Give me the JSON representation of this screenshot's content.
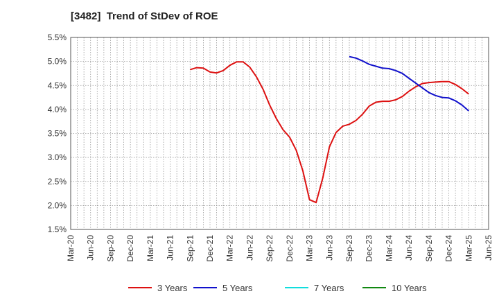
{
  "chart_data": {
    "type": "line",
    "title": "[3482]  Trend of StDev of ROE",
    "xlabel": "",
    "ylabel": "",
    "x_ticks": [
      "Mar-20",
      "Jun-20",
      "Sep-20",
      "Dec-20",
      "Mar-21",
      "Jun-21",
      "Sep-21",
      "Dec-21",
      "Mar-22",
      "Jun-22",
      "Sep-22",
      "Dec-22",
      "Mar-23",
      "Jun-23",
      "Sep-23",
      "Dec-23",
      "Mar-24",
      "Jun-24",
      "Sep-24",
      "Dec-24",
      "Mar-25",
      "Jun-25"
    ],
    "y_ticks": [
      "1.5%",
      "2.0%",
      "2.5%",
      "3.0%",
      "3.5%",
      "4.0%",
      "4.5%",
      "5.0%",
      "5.5%"
    ],
    "ylim": [
      1.5,
      5.5
    ],
    "grid": true,
    "legend_position": "bottom",
    "series": [
      {
        "name": "3 Years",
        "color": "#dd1111",
        "x": [
          "Sep-21",
          "Oct-21",
          "Nov-21",
          "Dec-21",
          "Jan-22",
          "Feb-22",
          "Mar-22",
          "Apr-22",
          "May-22",
          "Jun-22",
          "Jul-22",
          "Aug-22",
          "Sep-22",
          "Oct-22",
          "Nov-22",
          "Dec-22",
          "Jan-23",
          "Feb-23",
          "Mar-23",
          "Apr-23",
          "May-23",
          "Jun-23",
          "Jul-23",
          "Aug-23",
          "Sep-23",
          "Oct-23",
          "Nov-23",
          "Dec-23",
          "Jan-24",
          "Feb-24",
          "Mar-24",
          "Apr-24",
          "May-24",
          "Jun-24",
          "Jul-24",
          "Aug-24",
          "Sep-24",
          "Oct-24",
          "Nov-24",
          "Dec-24",
          "Jan-25",
          "Feb-25",
          "Mar-25"
        ],
        "values": [
          4.83,
          4.87,
          4.86,
          4.78,
          4.76,
          4.81,
          4.92,
          4.99,
          4.99,
          4.88,
          4.68,
          4.42,
          4.09,
          3.81,
          3.58,
          3.42,
          3.15,
          2.72,
          2.12,
          2.06,
          2.57,
          3.22,
          3.52,
          3.65,
          3.69,
          3.77,
          3.9,
          4.07,
          4.15,
          4.17,
          4.17,
          4.2,
          4.27,
          4.38,
          4.47,
          4.54,
          4.56,
          4.57,
          4.58,
          4.58,
          4.52,
          4.43,
          4.32
        ]
      },
      {
        "name": "5 Years",
        "color": "#1111cc",
        "x": [
          "Sep-23",
          "Oct-23",
          "Nov-23",
          "Dec-23",
          "Jan-24",
          "Feb-24",
          "Mar-24",
          "Apr-24",
          "May-24",
          "Jun-24",
          "Jul-24",
          "Aug-24",
          "Sep-24",
          "Oct-24",
          "Nov-24",
          "Dec-24",
          "Jan-25",
          "Feb-25",
          "Mar-25"
        ],
        "values": [
          5.1,
          5.07,
          5.01,
          4.94,
          4.9,
          4.86,
          4.85,
          4.81,
          4.75,
          4.65,
          4.55,
          4.45,
          4.35,
          4.29,
          4.25,
          4.24,
          4.18,
          4.09,
          3.97
        ]
      },
      {
        "name": "7 Years",
        "color": "#11dddd",
        "x": [],
        "values": []
      },
      {
        "name": "10 Years",
        "color": "#118811",
        "x": [],
        "values": []
      }
    ]
  }
}
